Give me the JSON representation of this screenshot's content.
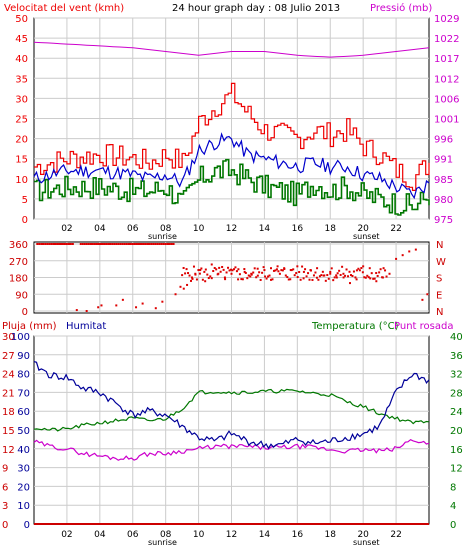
{
  "header": {
    "left_title": "Velocitat del vent (kmh)",
    "center_title": "24 hour graph day : 08 Julio 2013",
    "right_title": "Pressió (mb)"
  },
  "colors": {
    "wind_gust": "#ee0000",
    "wind_avg": "#0000cc",
    "wind_low": "#007700",
    "pressure": "#cc00cc",
    "direction": "#dd0000",
    "humidity": "#000099",
    "temperature": "#007700",
    "dewpoint": "#cc00cc",
    "rain": "#cc0000",
    "grid": "#cccccc"
  },
  "time_axis": {
    "labels": [
      "02",
      "04",
      "06",
      "08",
      "10",
      "12",
      "14",
      "16",
      "18",
      "20",
      "22"
    ],
    "sunrise_label": "sunrise",
    "sunset_label": "sunset"
  },
  "chart_data": [
    {
      "type": "line",
      "name": "wind",
      "title": "Velocitat del vent (kmh)",
      "ylabel_left": "Velocitat del vent (kmh)",
      "ylabel_right": "Pressió (mb)",
      "y_left_ticks": [
        "50",
        "45",
        "40",
        "35",
        "30",
        "25",
        "20",
        "15",
        "10",
        "5",
        "0"
      ],
      "y_right_ticks": [
        "1029",
        "1022",
        "1017",
        "1012",
        "1006",
        "1001",
        "996",
        "991",
        "985",
        "980",
        "975"
      ],
      "ylim_left": [
        0,
        50
      ],
      "ylim_right": [
        975,
        1029
      ],
      "x": [
        0,
        2,
        4,
        6,
        7,
        8,
        9,
        10,
        11,
        12,
        13,
        14,
        15,
        16,
        17,
        18,
        19,
        20,
        21,
        22,
        23,
        24
      ],
      "series": [
        {
          "name": "gust",
          "values": [
            13,
            15,
            16,
            15,
            14,
            16,
            14,
            24,
            28,
            31,
            26,
            22,
            21,
            20,
            22,
            21,
            22,
            18,
            16,
            12,
            10,
            14
          ]
        },
        {
          "name": "average",
          "values": [
            10,
            12,
            12,
            11,
            10,
            11,
            9,
            17,
            19,
            20,
            16,
            15,
            14,
            13,
            14,
            13,
            13,
            11,
            10,
            8,
            6,
            9
          ]
        },
        {
          "name": "low",
          "values": [
            7,
            8,
            8,
            7,
            7,
            8,
            4,
            10,
            12,
            12,
            10,
            8,
            7,
            6,
            9,
            7,
            8,
            6,
            5,
            4,
            3,
            6
          ]
        },
        {
          "name": "pressure",
          "values": [
            1022.5,
            1022,
            1021.5,
            1021,
            1020.5,
            1020,
            1019.5,
            1019,
            1019.5,
            1020,
            1020,
            1020,
            1019.5,
            1019,
            1018.7,
            1018.5,
            1018.7,
            1019,
            1019.5,
            1020,
            1020.5,
            1021
          ]
        }
      ]
    },
    {
      "type": "scatter",
      "name": "wind_direction",
      "y_left_ticks": [
        "360",
        "270",
        "180",
        "90",
        "0"
      ],
      "y_right_ticks": [
        "N",
        "W",
        "S",
        "E",
        "N"
      ],
      "ylim": [
        0,
        360
      ],
      "x": [
        0.5,
        1.2,
        2.2,
        2.6,
        3.2,
        3.5,
        3.9,
        4.1,
        4.6,
        5.0,
        5.4,
        5.8,
        6.2,
        6.6,
        7.0,
        7.4,
        7.8,
        8.2,
        8.6,
        8.9,
        9.1,
        9.3,
        9.6,
        9.8,
        10.1,
        10.4,
        10.8,
        11.2,
        11.6,
        12.0,
        12.4,
        12.8,
        13.2,
        13.6,
        14.0,
        14.4,
        14.8,
        15.2,
        15.6,
        16.0,
        16.4,
        16.8,
        17.2,
        17.6,
        18.0,
        18.4,
        18.8,
        19.2,
        19.6,
        20.0,
        20.4,
        20.8,
        21.2,
        21.6,
        22.0,
        22.4,
        22.8,
        23.2,
        23.6,
        23.9
      ],
      "values": [
        360,
        360,
        360,
        5,
        0,
        360,
        20,
        30,
        360,
        30,
        60,
        360,
        20,
        40,
        360,
        15,
        50,
        360,
        90,
        130,
        120,
        140,
        180,
        200,
        220,
        160,
        250,
        200,
        180,
        200,
        170,
        210,
        200,
        190,
        220,
        230,
        240,
        230,
        220,
        240,
        210,
        220,
        230,
        190,
        210,
        180,
        200,
        150,
        170,
        240,
        230,
        160,
        180,
        200,
        280,
        300,
        320,
        330,
        60,
        90
      ]
    },
    {
      "type": "line",
      "name": "humidity_temperature",
      "ylabel_left_1": "Pluja (mm)",
      "ylabel_left_2": "Humitat",
      "ylabel_right": "Temperatura (°C)",
      "ylabel_right_2": "Punt rosada",
      "y_rain_ticks": [
        "30",
        "27",
        "24",
        "21",
        "18",
        "15",
        "12",
        "9",
        "6",
        "3",
        "0"
      ],
      "y_humidity_ticks": [
        "100",
        "90",
        "80",
        "70",
        "60",
        "50",
        "40",
        "30",
        "20",
        "10",
        "0"
      ],
      "y_temp_ticks": [
        "40",
        "36",
        "32",
        "28",
        "24",
        "20",
        "16",
        "12",
        "8",
        "4",
        "0"
      ],
      "ylim_humidity": [
        0,
        100
      ],
      "ylim_temp": [
        0,
        40
      ],
      "x": [
        0,
        1,
        2,
        3,
        4,
        5,
        6,
        7,
        8,
        9,
        10,
        11,
        12,
        13,
        14,
        15,
        16,
        17,
        18,
        19,
        20,
        21,
        22,
        23,
        24
      ],
      "series": [
        {
          "name": "humidity",
          "values": [
            85,
            79,
            78,
            72,
            70,
            64,
            58,
            60,
            58,
            52,
            46,
            44,
            48,
            44,
            42,
            42,
            45,
            43,
            44,
            46,
            48,
            52,
            70,
            80,
            76
          ]
        },
        {
          "name": "temperature",
          "values": [
            20.5,
            20,
            20.2,
            21,
            21.5,
            22,
            22.5,
            22,
            22.4,
            24.5,
            28,
            28.2,
            28,
            28,
            28.2,
            28.3,
            28.3,
            27.8,
            27.5,
            26,
            25,
            23.5,
            22.5,
            21.5,
            22
          ]
        },
        {
          "name": "dewpoint",
          "values": [
            17.5,
            16.5,
            16,
            15,
            14.5,
            14,
            14,
            15,
            15,
            15.5,
            16,
            16.5,
            16.5,
            16.5,
            16.2,
            16.3,
            16.5,
            16.3,
            15.8,
            15.5,
            15.8,
            15.5,
            16,
            18,
            17
          ]
        },
        {
          "name": "rain",
          "values": [
            0,
            0,
            0,
            0,
            0,
            0,
            0,
            0,
            0,
            0,
            0,
            0,
            0,
            0,
            0,
            0,
            0,
            0,
            0,
            0,
            0,
            0,
            0,
            0,
            0
          ]
        }
      ]
    }
  ],
  "bottom_header": {
    "rain_label": "Pluja (mm)",
    "humidity_label": "Humitat",
    "temp_label": "Temperatura (°C)",
    "dew_label": "Punt rosada"
  }
}
